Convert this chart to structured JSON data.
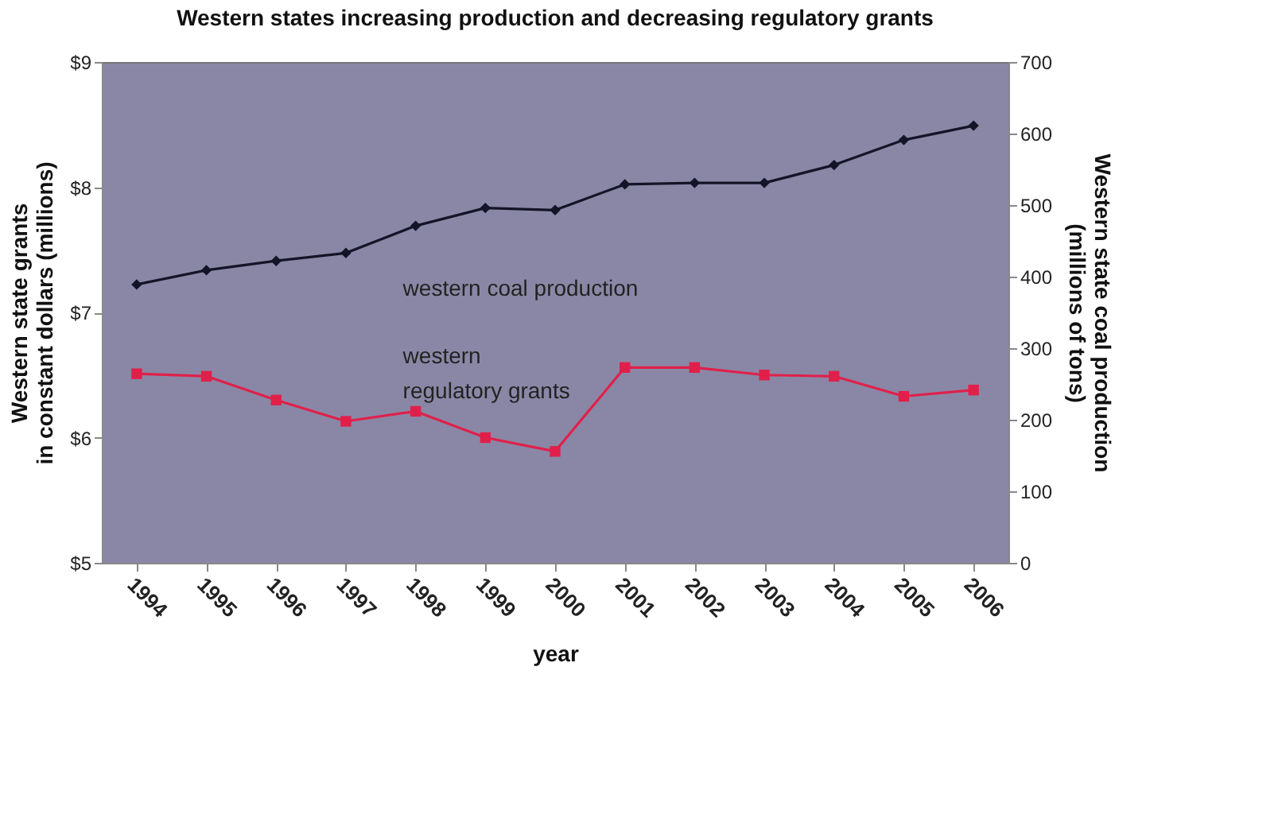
{
  "chart_data": {
    "type": "line",
    "title": "Western states increasing production and decreasing regulatory grants",
    "xlabel": "year",
    "ylabel": "Western state grants\nin constant dollars (millions)",
    "y2label": "Western state coal production\n(millions of tons)",
    "categories": [
      "1994",
      "1995",
      "1996",
      "1997",
      "1998",
      "1999",
      "2000",
      "2001",
      "2002",
      "2003",
      "2004",
      "2005",
      "2006"
    ],
    "series": [
      {
        "name": "western coal production",
        "color": "#141428",
        "axis": "y2",
        "marker": "diamond",
        "values": [
          389,
          409,
          422,
          433,
          471,
          496,
          493,
          529,
          531,
          531,
          556,
          591,
          611
        ]
      },
      {
        "name": "western\nregulatory grants",
        "color": "#e0204a",
        "marker": "square",
        "values": [
          6.51,
          6.49,
          6.3,
          6.13,
          6.21,
          6.0,
          5.89,
          6.56,
          6.56,
          6.5,
          6.49,
          6.33,
          6.38
        ]
      }
    ],
    "ylim": [
      5,
      9
    ],
    "yticks": [
      {
        "value": 5,
        "label": "$5"
      },
      {
        "value": 6,
        "label": "$6"
      },
      {
        "value": 7,
        "label": "$7"
      },
      {
        "value": 8,
        "label": "$8"
      },
      {
        "value": 9,
        "label": "$9"
      }
    ],
    "y2lim": [
      0,
      700
    ],
    "y2ticks": [
      0,
      100,
      200,
      300,
      400,
      500,
      600,
      700
    ],
    "grid": false,
    "line_style": "solid"
  }
}
